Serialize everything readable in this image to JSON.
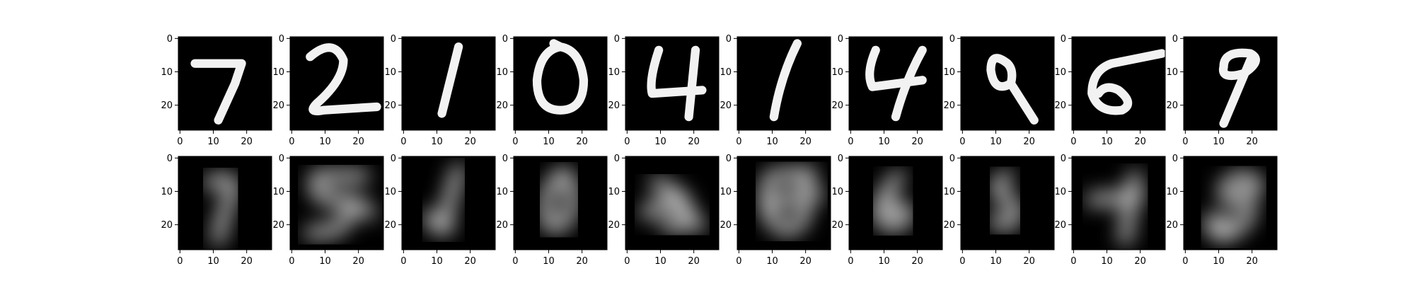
{
  "chart_data": {
    "type": "image-grid",
    "rows": 2,
    "cols": 10,
    "image_size": [
      28,
      28
    ],
    "colormap": "gray",
    "axes": {
      "x_ticks": [
        0,
        10,
        20
      ],
      "y_ticks": [
        0,
        10,
        20
      ],
      "xlim": [
        -0.5,
        27.5
      ],
      "ylim": [
        27.5,
        -0.5
      ]
    },
    "panels": [
      {
        "row": 1,
        "col": 1,
        "depicts": "handwritten digit 7",
        "sharpness": "sharp"
      },
      {
        "row": 1,
        "col": 2,
        "depicts": "handwritten digit 2",
        "sharpness": "sharp"
      },
      {
        "row": 1,
        "col": 3,
        "depicts": "handwritten digit 1",
        "sharpness": "sharp"
      },
      {
        "row": 1,
        "col": 4,
        "depicts": "handwritten digit 0",
        "sharpness": "sharp"
      },
      {
        "row": 1,
        "col": 5,
        "depicts": "handwritten digit 4",
        "sharpness": "sharp"
      },
      {
        "row": 1,
        "col": 6,
        "depicts": "handwritten digit 1",
        "sharpness": "sharp"
      },
      {
        "row": 1,
        "col": 7,
        "depicts": "handwritten digit 4",
        "sharpness": "sharp"
      },
      {
        "row": 1,
        "col": 8,
        "depicts": "handwritten digit 9",
        "sharpness": "sharp"
      },
      {
        "row": 1,
        "col": 9,
        "depicts": "handwritten digit 5",
        "sharpness": "sharp"
      },
      {
        "row": 1,
        "col": 10,
        "depicts": "handwritten digit 9",
        "sharpness": "sharp"
      },
      {
        "row": 2,
        "col": 1,
        "depicts": "blurry digit resembling 7",
        "sharpness": "blurry"
      },
      {
        "row": 2,
        "col": 2,
        "depicts": "blurry digit resembling 5",
        "sharpness": "blurry"
      },
      {
        "row": 2,
        "col": 3,
        "depicts": "faint blurry stroke",
        "sharpness": "blurry"
      },
      {
        "row": 2,
        "col": 4,
        "depicts": "blurry digit resembling 0",
        "sharpness": "blurry"
      },
      {
        "row": 2,
        "col": 5,
        "depicts": "blurry blob",
        "sharpness": "blurry"
      },
      {
        "row": 2,
        "col": 6,
        "depicts": "blurry digit resembling 6/8",
        "sharpness": "blurry"
      },
      {
        "row": 2,
        "col": 7,
        "depicts": "blurry digit resembling 6",
        "sharpness": "blurry"
      },
      {
        "row": 2,
        "col": 8,
        "depicts": "blurry digit resembling 5",
        "sharpness": "blurry"
      },
      {
        "row": 2,
        "col": 9,
        "depicts": "blurry digit resembling 7",
        "sharpness": "blurry"
      },
      {
        "row": 2,
        "col": 10,
        "depicts": "blurry digit resembling 8",
        "sharpness": "blurry"
      }
    ]
  }
}
